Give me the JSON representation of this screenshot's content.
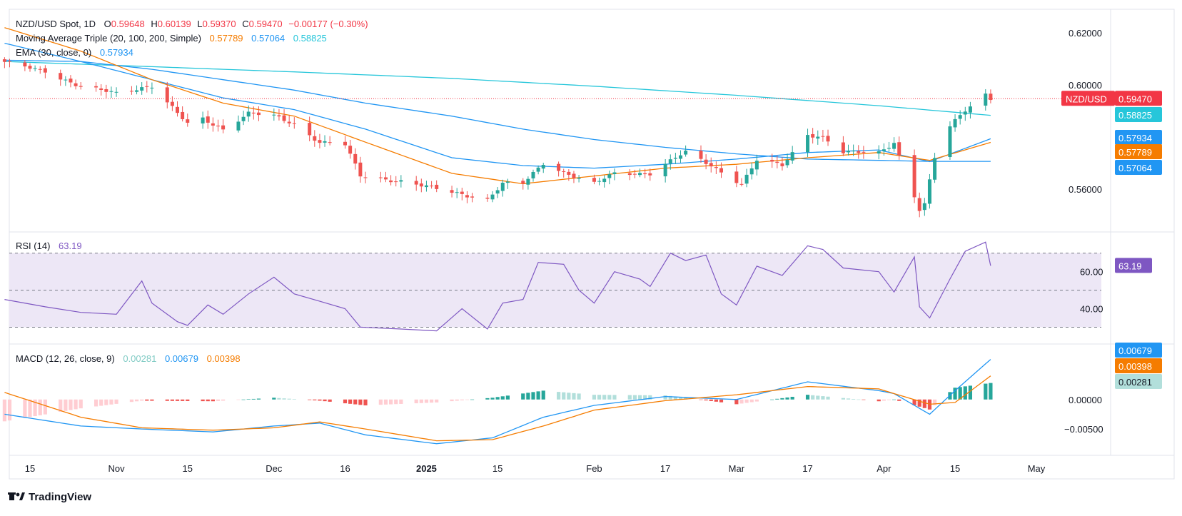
{
  "branding": {
    "logo_text": "TradingView"
  },
  "colors": {
    "up": "#26a69a",
    "down": "#ef5350",
    "sma20": "#f57c00",
    "sma100": "#2196f3",
    "sma200": "#26c6da",
    "ema30": "#2196f3",
    "rsi": "#7e57c2",
    "rsi_band": "#ede7f6",
    "macd": "#2196f3",
    "signal": "#f57c00",
    "hist_up_strong": "#26a69a",
    "hist_up_weak": "#b2dfdb",
    "hist_down_strong": "#ef5350",
    "hist_down_weak": "#ffcdd2",
    "last_price": "#f23645",
    "grid": "#e0e3eb",
    "text": "#131722"
  },
  "header": {
    "symbol": "NZD/USD Spot, 1D",
    "o_label": "O",
    "o_value": "0.59648",
    "h_label": "H",
    "h_value": "0.60139",
    "l_label": "L",
    "l_value": "0.59370",
    "c_label": "C",
    "c_value": "0.59470",
    "change": "−0.00177 (−0.30%)",
    "ma_title": "Moving Average Triple (20, 100, 200, Simple)",
    "ma_values": [
      "0.57789",
      "0.57064",
      "0.58825"
    ],
    "ema_title": "EMA (30, close, 0)",
    "ema_value": "0.57934"
  },
  "rsi_header": {
    "title": "RSI (14)",
    "value": "63.19"
  },
  "macd_header": {
    "title": "MACD (12, 26, close, 9)",
    "values": [
      "0.00281",
      "0.00679",
      "0.00398"
    ]
  },
  "price_badges": {
    "symbol_label": "NZD/USD",
    "last": "0.59470",
    "sma200": "0.58825",
    "ema30": "0.57934",
    "sma20": "0.57789",
    "sma100": "0.57064"
  },
  "rsi_badge": "63.19",
  "macd_badges": {
    "macd": "0.00679",
    "signal": "0.00398",
    "hist": "0.00281"
  },
  "chart_data": {
    "type": "candlestick",
    "price_axis": {
      "ticks": [
        "0.62000",
        "0.60000",
        "0.56000"
      ],
      "tick_values": [
        0.62,
        0.6,
        0.56
      ],
      "range": [
        0.5465,
        0.6255
      ]
    },
    "rsi_axis": {
      "ticks": [
        "40.00"
      ],
      "tick_values": [
        40
      ],
      "extra_level_label": "60.00",
      "bands": [
        30,
        70,
        50
      ],
      "range": [
        24,
        78
      ]
    },
    "macd_axis": {
      "ticks": [
        "0.00000",
        "−0.00500"
      ],
      "tick_values": [
        0,
        -0.005
      ],
      "range": [
        -0.0085,
        0.0082
      ]
    },
    "x_ticks": [
      {
        "label": "15",
        "date": "2024-10-15"
      },
      {
        "label": "Nov",
        "date": "2024-11-01"
      },
      {
        "label": "15",
        "date": "2024-11-15"
      },
      {
        "label": "Dec",
        "date": "2024-12-02"
      },
      {
        "label": "16",
        "date": "2024-12-16"
      },
      {
        "label": "2025",
        "date": "2025-01-01",
        "bold": true
      },
      {
        "label": "15",
        "date": "2025-01-15"
      },
      {
        "label": "Feb",
        "date": "2025-02-03"
      },
      {
        "label": "17",
        "date": "2025-02-17"
      },
      {
        "label": "Mar",
        "date": "2025-03-03"
      },
      {
        "label": "17",
        "date": "2025-03-17"
      },
      {
        "label": "Apr",
        "date": "2025-04-01"
      },
      {
        "label": "15",
        "date": "2025-04-15"
      },
      {
        "label": "May",
        "date": "2025-05-01"
      }
    ],
    "candles_date_range": [
      "2024-10-10",
      "2025-04-22"
    ],
    "close_anchors": [
      [
        "2024-10-10",
        0.6085
      ],
      [
        "2024-10-18",
        0.6055
      ],
      [
        "2024-10-25",
        0.599
      ],
      [
        "2024-11-01",
        0.597
      ],
      [
        "2024-11-06",
        0.599
      ],
      [
        "2024-11-08",
        0.5995
      ],
      [
        "2024-11-13",
        0.589
      ],
      [
        "2024-11-15",
        0.585
      ],
      [
        "2024-11-18",
        0.587
      ],
      [
        "2024-11-22",
        0.583
      ],
      [
        "2024-11-27",
        0.589
      ],
      [
        "2024-12-02",
        0.588
      ],
      [
        "2024-12-06",
        0.585
      ],
      [
        "2024-12-11",
        0.578
      ],
      [
        "2024-12-16",
        0.577
      ],
      [
        "2024-12-19",
        0.565
      ],
      [
        "2024-12-27",
        0.563
      ],
      [
        "2025-01-03",
        0.56
      ],
      [
        "2025-01-13",
        0.556
      ],
      [
        "2025-01-16",
        0.562
      ],
      [
        "2025-01-20",
        0.562
      ],
      [
        "2025-01-24",
        0.57
      ],
      [
        "2025-01-31",
        0.564
      ],
      [
        "2025-02-03",
        0.562
      ],
      [
        "2025-02-07",
        0.566
      ],
      [
        "2025-02-14",
        0.566
      ],
      [
        "2025-02-19",
        0.572
      ],
      [
        "2025-02-21",
        0.574
      ],
      [
        "2025-02-26",
        0.569
      ],
      [
        "2025-03-04",
        0.562
      ],
      [
        "2025-03-07",
        0.571
      ],
      [
        "2025-03-12",
        0.569
      ],
      [
        "2025-03-17",
        0.581
      ],
      [
        "2025-03-20",
        0.58
      ],
      [
        "2025-03-24",
        0.574
      ],
      [
        "2025-03-31",
        0.574
      ],
      [
        "2025-04-03",
        0.578
      ],
      [
        "2025-04-08",
        0.552
      ],
      [
        "2025-04-09",
        0.554
      ],
      [
        "2025-04-11",
        0.572
      ],
      [
        "2025-04-14",
        0.584
      ],
      [
        "2025-04-17",
        0.5905
      ],
      [
        "2025-04-18",
        0.592
      ],
      [
        "2025-04-21",
        0.5965
      ],
      [
        "2025-04-22",
        0.5947
      ]
    ],
    "sma20_anchors": [
      [
        "2024-10-10",
        0.622
      ],
      [
        "2024-10-25",
        0.613
      ],
      [
        "2024-11-08",
        0.602
      ],
      [
        "2024-11-22",
        0.593
      ],
      [
        "2024-12-06",
        0.588
      ],
      [
        "2024-12-20",
        0.578
      ],
      [
        "2025-01-06",
        0.566
      ],
      [
        "2025-01-20",
        0.562
      ],
      [
        "2025-02-03",
        0.565
      ],
      [
        "2025-02-17",
        0.568
      ],
      [
        "2025-03-03",
        0.5695
      ],
      [
        "2025-03-17",
        0.572
      ],
      [
        "2025-03-31",
        0.574
      ],
      [
        "2025-04-10",
        0.571
      ],
      [
        "2025-04-22",
        0.5779
      ]
    ],
    "ema30_anchors": [
      [
        "2024-10-10",
        0.616
      ],
      [
        "2024-10-25",
        0.609
      ],
      [
        "2024-11-08",
        0.602
      ],
      [
        "2024-11-22",
        0.595
      ],
      [
        "2024-12-06",
        0.5905
      ],
      [
        "2024-12-20",
        0.583
      ],
      [
        "2025-01-06",
        0.572
      ],
      [
        "2025-01-20",
        0.569
      ],
      [
        "2025-02-03",
        0.568
      ],
      [
        "2025-02-17",
        0.5695
      ],
      [
        "2025-03-03",
        0.5715
      ],
      [
        "2025-03-17",
        0.574
      ],
      [
        "2025-03-31",
        0.575
      ],
      [
        "2025-04-10",
        0.5705
      ],
      [
        "2025-04-22",
        0.5793
      ]
    ],
    "sma100_anchors": [
      [
        "2024-10-10",
        0.6095
      ],
      [
        "2024-10-25",
        0.609
      ],
      [
        "2024-11-08",
        0.606
      ],
      [
        "2024-11-22",
        0.602
      ],
      [
        "2024-12-06",
        0.598
      ],
      [
        "2024-12-20",
        0.593
      ],
      [
        "2025-01-06",
        0.588
      ],
      [
        "2025-01-20",
        0.583
      ],
      [
        "2025-02-03",
        0.579
      ],
      [
        "2025-02-17",
        0.576
      ],
      [
        "2025-03-03",
        0.5735
      ],
      [
        "2025-03-17",
        0.5715
      ],
      [
        "2025-03-31",
        0.571
      ],
      [
        "2025-04-10",
        0.5706
      ],
      [
        "2025-04-22",
        0.5706
      ]
    ],
    "sma200_anchors": [
      [
        "2024-10-10",
        0.609
      ],
      [
        "2024-11-08",
        0.607
      ],
      [
        "2024-12-06",
        0.605
      ],
      [
        "2025-01-06",
        0.6025
      ],
      [
        "2025-02-03",
        0.5995
      ],
      [
        "2025-03-03",
        0.596
      ],
      [
        "2025-03-31",
        0.592
      ],
      [
        "2025-04-22",
        0.5883
      ]
    ],
    "rsi_anchors": [
      [
        "2024-10-10",
        45
      ],
      [
        "2024-10-18",
        41
      ],
      [
        "2024-10-25",
        38
      ],
      [
        "2024-11-01",
        37
      ],
      [
        "2024-11-06",
        55
      ],
      [
        "2024-11-08",
        43
      ],
      [
        "2024-11-13",
        33
      ],
      [
        "2024-11-15",
        31
      ],
      [
        "2024-11-19",
        42
      ],
      [
        "2024-11-22",
        37
      ],
      [
        "2024-11-27",
        48
      ],
      [
        "2024-12-02",
        57
      ],
      [
        "2024-12-06",
        48
      ],
      [
        "2024-12-11",
        44
      ],
      [
        "2024-12-16",
        40
      ],
      [
        "2024-12-19",
        30
      ],
      [
        "2024-12-27",
        29
      ],
      [
        "2025-01-03",
        28
      ],
      [
        "2025-01-08",
        40
      ],
      [
        "2025-01-13",
        29
      ],
      [
        "2025-01-16",
        43
      ],
      [
        "2025-01-20",
        45
      ],
      [
        "2025-01-23",
        65
      ],
      [
        "2025-01-28",
        64
      ],
      [
        "2025-01-31",
        50
      ],
      [
        "2025-02-03",
        43
      ],
      [
        "2025-02-07",
        60
      ],
      [
        "2025-02-12",
        56
      ],
      [
        "2025-02-14",
        52
      ],
      [
        "2025-02-18",
        70
      ],
      [
        "2025-02-21",
        66
      ],
      [
        "2025-02-25",
        69
      ],
      [
        "2025-02-28",
        48
      ],
      [
        "2025-03-03",
        42
      ],
      [
        "2025-03-07",
        63
      ],
      [
        "2025-03-12",
        58
      ],
      [
        "2025-03-17",
        74
      ],
      [
        "2025-03-20",
        72
      ],
      [
        "2025-03-24",
        62
      ],
      [
        "2025-03-31",
        60
      ],
      [
        "2025-04-03",
        49
      ],
      [
        "2025-04-07",
        68
      ],
      [
        "2025-04-08",
        41
      ],
      [
        "2025-04-10",
        35
      ],
      [
        "2025-04-14",
        56
      ],
      [
        "2025-04-17",
        71
      ],
      [
        "2025-04-21",
        76
      ],
      [
        "2025-04-22",
        63.19
      ]
    ],
    "macd_anchors": [
      [
        "2024-10-10",
        -0.0025
      ],
      [
        "2024-10-25",
        -0.0045
      ],
      [
        "2024-11-06",
        -0.005
      ],
      [
        "2024-11-20",
        -0.0055
      ],
      [
        "2024-12-02",
        -0.0045
      ],
      [
        "2024-12-11",
        -0.004
      ],
      [
        "2024-12-20",
        -0.006
      ],
      [
        "2025-01-03",
        -0.0075
      ],
      [
        "2025-01-14",
        -0.0065
      ],
      [
        "2025-01-24",
        -0.003
      ],
      [
        "2025-02-03",
        -0.001
      ],
      [
        "2025-02-17",
        0.0005
      ],
      [
        "2025-03-03",
        0.0
      ],
      [
        "2025-03-17",
        0.003
      ],
      [
        "2025-03-31",
        0.0015
      ],
      [
        "2025-04-03",
        0.001
      ],
      [
        "2025-04-10",
        -0.0025
      ],
      [
        "2025-04-15",
        0.0015
      ],
      [
        "2025-04-22",
        0.0068
      ]
    ],
    "signal_anchors": [
      [
        "2024-10-10",
        0.0012
      ],
      [
        "2024-10-25",
        -0.003
      ],
      [
        "2024-11-06",
        -0.0048
      ],
      [
        "2024-11-20",
        -0.0052
      ],
      [
        "2024-12-02",
        -0.0048
      ],
      [
        "2024-12-11",
        -0.0038
      ],
      [
        "2024-12-20",
        -0.005
      ],
      [
        "2025-01-03",
        -0.007
      ],
      [
        "2025-01-14",
        -0.0068
      ],
      [
        "2025-01-24",
        -0.0045
      ],
      [
        "2025-02-03",
        -0.0018
      ],
      [
        "2025-02-17",
        -0.0002
      ],
      [
        "2025-03-03",
        0.0008
      ],
      [
        "2025-03-17",
        0.0022
      ],
      [
        "2025-03-31",
        0.0018
      ],
      [
        "2025-04-03",
        0.001
      ],
      [
        "2025-04-10",
        -0.0008
      ],
      [
        "2025-04-15",
        -0.0005
      ],
      [
        "2025-04-22",
        0.004
      ]
    ]
  }
}
